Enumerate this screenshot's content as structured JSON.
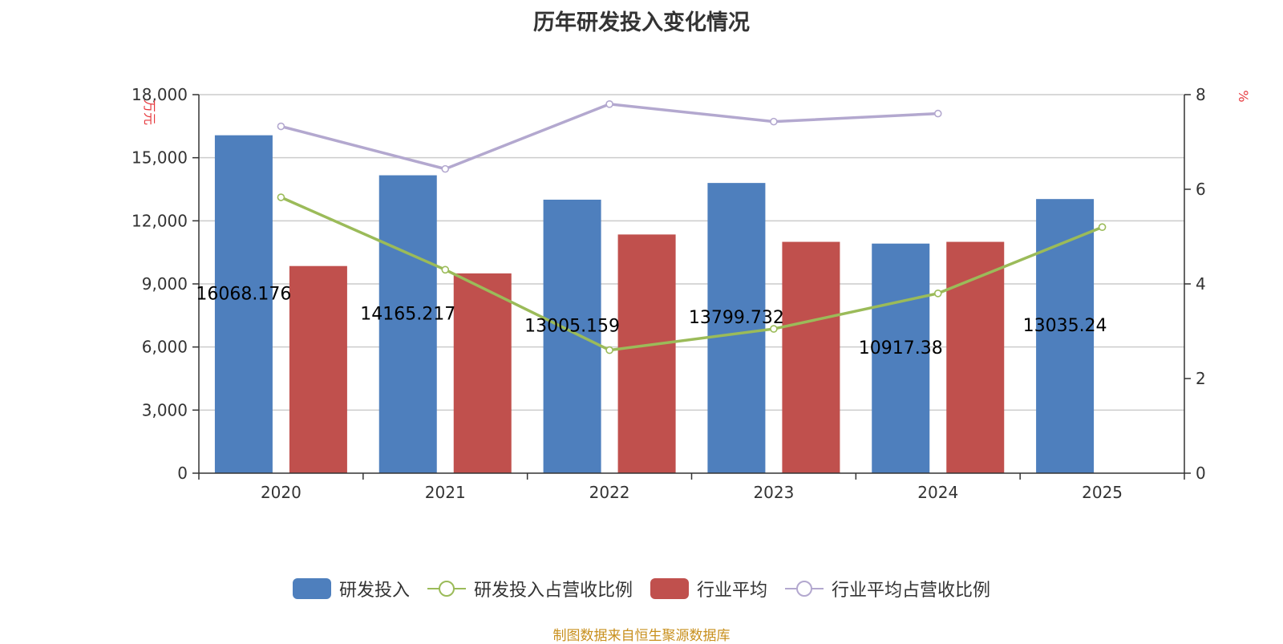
{
  "title": "历年研发投入变化情况",
  "source": "制图数据来自恒生聚源数据库",
  "chart_data": {
    "type": "bar",
    "categories": [
      "2020",
      "2021",
      "2022",
      "2023",
      "2024",
      "2025"
    ],
    "y_left": {
      "unit": "万元",
      "ylim": [
        0,
        18000
      ],
      "ticks": [
        0,
        3000,
        6000,
        9000,
        12000,
        15000,
        18000
      ],
      "tick_labels": [
        "0",
        "3,000",
        "6,000",
        "9,000",
        "12,000",
        "15,000",
        "18,000"
      ]
    },
    "y_right": {
      "unit": "%",
      "ylim": [
        0,
        8
      ],
      "ticks": [
        0,
        2,
        4,
        6,
        8
      ],
      "tick_labels": [
        "0",
        "2",
        "4",
        "6",
        "8"
      ]
    },
    "grid": true,
    "legend_position": "bottom",
    "series": [
      {
        "name": "研发投入",
        "kind": "bar",
        "axis": "left",
        "color": "#4e7fbd",
        "values": [
          16068.176,
          14165.217,
          13005.159,
          13799.732,
          10917.38,
          13035.24
        ],
        "data_labels": [
          "16068.176",
          "14165.217",
          "13005.159",
          "13799.732",
          "10917.38",
          "13035.24"
        ]
      },
      {
        "name": "研发投入占营收比例",
        "kind": "line",
        "axis": "right",
        "color": "#9bbb59",
        "values": [
          5.83,
          4.3,
          2.6,
          3.05,
          3.8,
          5.2
        ]
      },
      {
        "name": "行业平均",
        "kind": "bar",
        "axis": "left",
        "color": "#c0504d",
        "values": [
          9850,
          9500,
          11350,
          11000,
          11000,
          null
        ]
      },
      {
        "name": "行业平均占营收比例",
        "kind": "line",
        "axis": "right",
        "color": "#b3a8cf",
        "values": [
          7.33,
          6.43,
          7.8,
          7.43,
          7.6,
          null
        ]
      }
    ]
  }
}
